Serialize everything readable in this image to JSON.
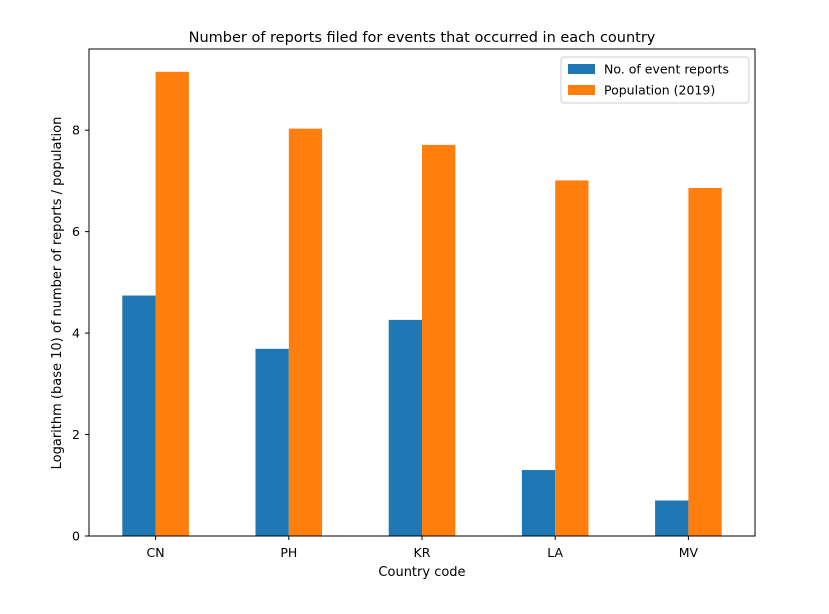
{
  "chart_data": {
    "type": "bar",
    "title": "Number of reports filed for events that occurred in each country",
    "xlabel": "Country code",
    "ylabel": "Logarithm (base 10) of number of reports / population",
    "categories": [
      "CN",
      "PH",
      "KR",
      "LA",
      "MV"
    ],
    "ylim": [
      0,
      9.6
    ],
    "yticks": [
      0,
      2,
      4,
      6,
      8
    ],
    "grid": false,
    "legend_position": "top-right",
    "series": [
      {
        "name": "No. of event reports",
        "color": "#1f77b4",
        "values": [
          4.74,
          3.69,
          4.26,
          1.3,
          0.7
        ]
      },
      {
        "name": "Population (2019)",
        "color": "#ff7f0e",
        "values": [
          9.15,
          8.03,
          7.71,
          7.01,
          6.86
        ]
      }
    ]
  }
}
